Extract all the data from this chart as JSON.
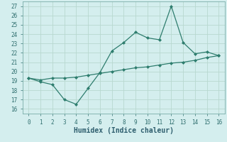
{
  "xlabel": "Humidex (Indice chaleur)",
  "x": [
    0,
    1,
    2,
    3,
    4,
    5,
    6,
    7,
    8,
    9,
    10,
    11,
    12,
    13,
    14,
    15,
    16
  ],
  "line1_y": [
    19.3,
    18.9,
    18.6,
    17.0,
    16.5,
    18.2,
    19.9,
    22.2,
    23.1,
    24.2,
    23.6,
    23.4,
    27.0,
    23.1,
    21.9,
    22.1,
    21.7
  ],
  "line2_y": [
    19.3,
    19.1,
    19.3,
    19.3,
    19.4,
    19.6,
    19.8,
    20.0,
    20.2,
    20.4,
    20.5,
    20.7,
    20.9,
    21.0,
    21.2,
    21.5,
    21.7
  ],
  "line_color": "#2e7d6e",
  "bg_color": "#d4eeee",
  "grid_color": "#b8d8d0",
  "ylim_min": 15.5,
  "ylim_max": 27.5,
  "xlim_min": -0.5,
  "xlim_max": 16.5,
  "yticks": [
    16,
    17,
    18,
    19,
    20,
    21,
    22,
    23,
    24,
    25,
    26,
    27
  ],
  "xticks": [
    0,
    1,
    2,
    3,
    4,
    5,
    6,
    7,
    8,
    9,
    10,
    11,
    12,
    13,
    14,
    15,
    16
  ],
  "tick_color": "#2e6e6e",
  "xlabel_color": "#2e5e6e",
  "tick_fontsize": 5.5,
  "xlabel_fontsize": 7.0
}
